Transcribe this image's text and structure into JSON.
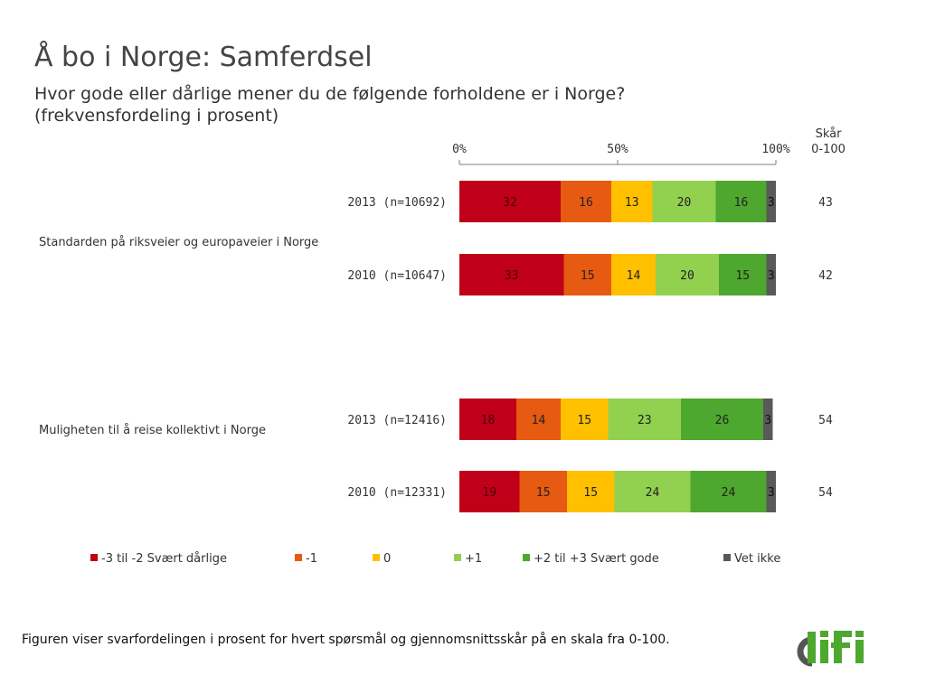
{
  "title": "Å bo i Norge: Samferdsel",
  "subtitle_line1": "Hvor gode eller dårlige mener du de følgende forholdene er i Norge?",
  "subtitle_line2": "(frekvensfordeling i prosent)",
  "score_header_line1": "Skår",
  "score_header_line2": "0-100",
  "footnote": "Figuren viser svarfordelingen i prosent for hvert spørsmål og gjennomsnittsskår på en skala fra 0-100.",
  "logo_text": "difi",
  "colors": {
    "very_bad": "#c00018",
    "minus1": "#e65a12",
    "neutral": "#ffc000",
    "plus1": "#92d050",
    "very_good": "#4ea72e",
    "dont_know": "#595959"
  },
  "questions": [
    {
      "label": "Standarden på riksveier og europaveier i Norge"
    },
    {
      "label": "Muligheten til å reise kollektivt i Norge"
    }
  ],
  "chart_data": {
    "type": "bar",
    "orientation": "horizontal",
    "stacked": true,
    "xlim": [
      0,
      100
    ],
    "x_ticks": [
      "0%",
      "50%",
      "100%"
    ],
    "legend_position": "bottom",
    "grid": false,
    "series": [
      {
        "name": "-3 til -2 Svært dårlige",
        "color": "#c00018"
      },
      {
        "name": "-1",
        "color": "#e65a12"
      },
      {
        "name": "0",
        "color": "#ffc000"
      },
      {
        "name": "+1",
        "color": "#92d050"
      },
      {
        "name": "+2 til +3 Svært gode",
        "color": "#4ea72e"
      },
      {
        "name": "Vet ikke",
        "color": "#595959"
      }
    ],
    "rows": [
      {
        "question": "Standarden på riksveier og europaveier i Norge",
        "label": "2013 (n=10692)",
        "values": [
          32,
          16,
          13,
          20,
          16,
          3
        ],
        "score": 43
      },
      {
        "question": "Standarden på riksveier og europaveier i Norge",
        "label": "2010 (n=10647)",
        "values": [
          33,
          15,
          14,
          20,
          15,
          3
        ],
        "score": 42
      },
      {
        "question": "Muligheten til å reise kollektivt i Norge",
        "label": "2013 (n=12416)",
        "values": [
          18,
          14,
          15,
          23,
          26,
          3
        ],
        "score": 54
      },
      {
        "question": "Muligheten til å reise kollektivt i Norge",
        "label": "2010 (n=12331)",
        "values": [
          19,
          15,
          15,
          24,
          24,
          3
        ],
        "score": 54
      }
    ]
  }
}
